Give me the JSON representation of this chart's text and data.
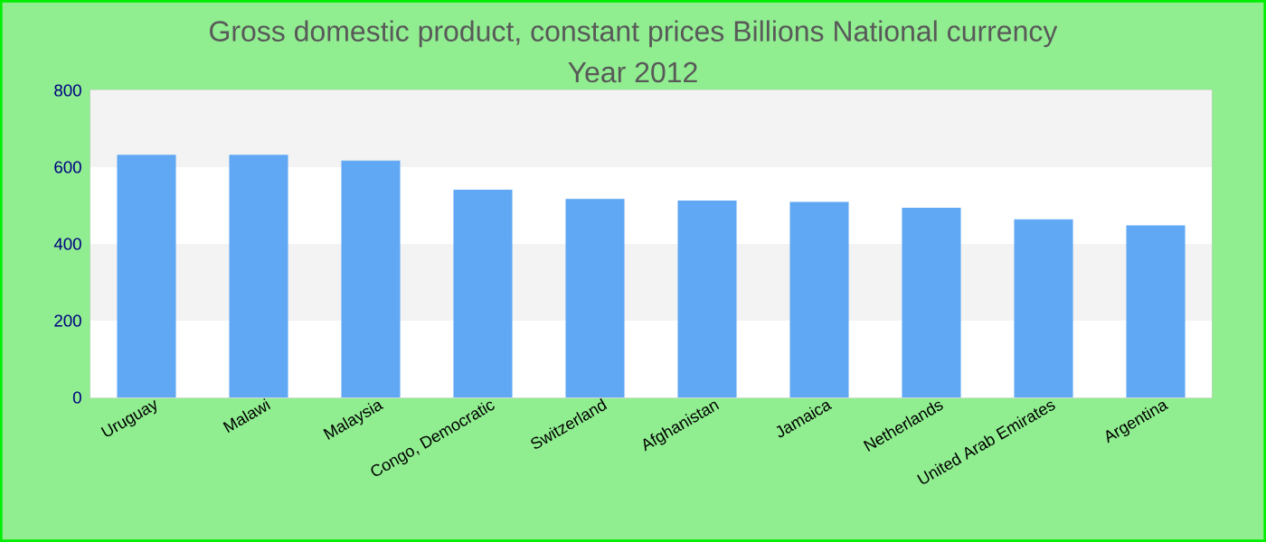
{
  "chart_data": {
    "type": "bar",
    "title": "Gross domestic product, constant prices Billions National currency",
    "subtitle": "Year 2012",
    "categories": [
      "Uruguay",
      "Malawi",
      "Malaysia",
      "Congo, Democratic",
      "Switzerland",
      "Afghanistan",
      "Jamaica",
      "Netherlands",
      "United Arab Emirates",
      "Argentina"
    ],
    "values": [
      631,
      631,
      616,
      540,
      516,
      512,
      508,
      493,
      463,
      447
    ],
    "color": "#60a8f4",
    "ylim": [
      0,
      800
    ],
    "yticks": [
      0,
      200,
      400,
      600,
      800
    ],
    "grid": "y"
  }
}
